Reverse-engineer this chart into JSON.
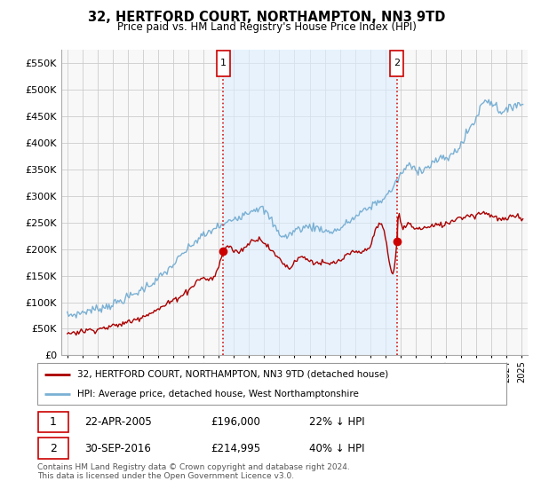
{
  "title": "32, HERTFORD COURT, NORTHAMPTON, NN3 9TD",
  "subtitle": "Price paid vs. HM Land Registry's House Price Index (HPI)",
  "legend_line1": "32, HERTFORD COURT, NORTHAMPTON, NN3 9TD (detached house)",
  "legend_line2": "HPI: Average price, detached house, West Northamptonshire",
  "footnote": "Contains HM Land Registry data © Crown copyright and database right 2024.\nThis data is licensed under the Open Government Licence v3.0.",
  "sale1_label": "1",
  "sale1_date": "22-APR-2005",
  "sale1_price": "£196,000",
  "sale1_hpi": "22% ↓ HPI",
  "sale2_label": "2",
  "sale2_date": "30-SEP-2016",
  "sale2_price": "£214,995",
  "sale2_hpi": "40% ↓ HPI",
  "red_color": "#aa0000",
  "blue_color": "#7ab0d4",
  "shade_color": "#ddeeff",
  "dot_color": "#cc0000",
  "ylim": [
    0,
    575000
  ],
  "yticks": [
    0,
    50000,
    100000,
    150000,
    200000,
    250000,
    300000,
    350000,
    400000,
    450000,
    500000,
    550000
  ],
  "sale1_x": 2005.3,
  "sale1_y": 196000,
  "sale2_x": 2016.75,
  "sale2_y": 214995,
  "xmin": 1995.0,
  "xmax": 2025.0
}
